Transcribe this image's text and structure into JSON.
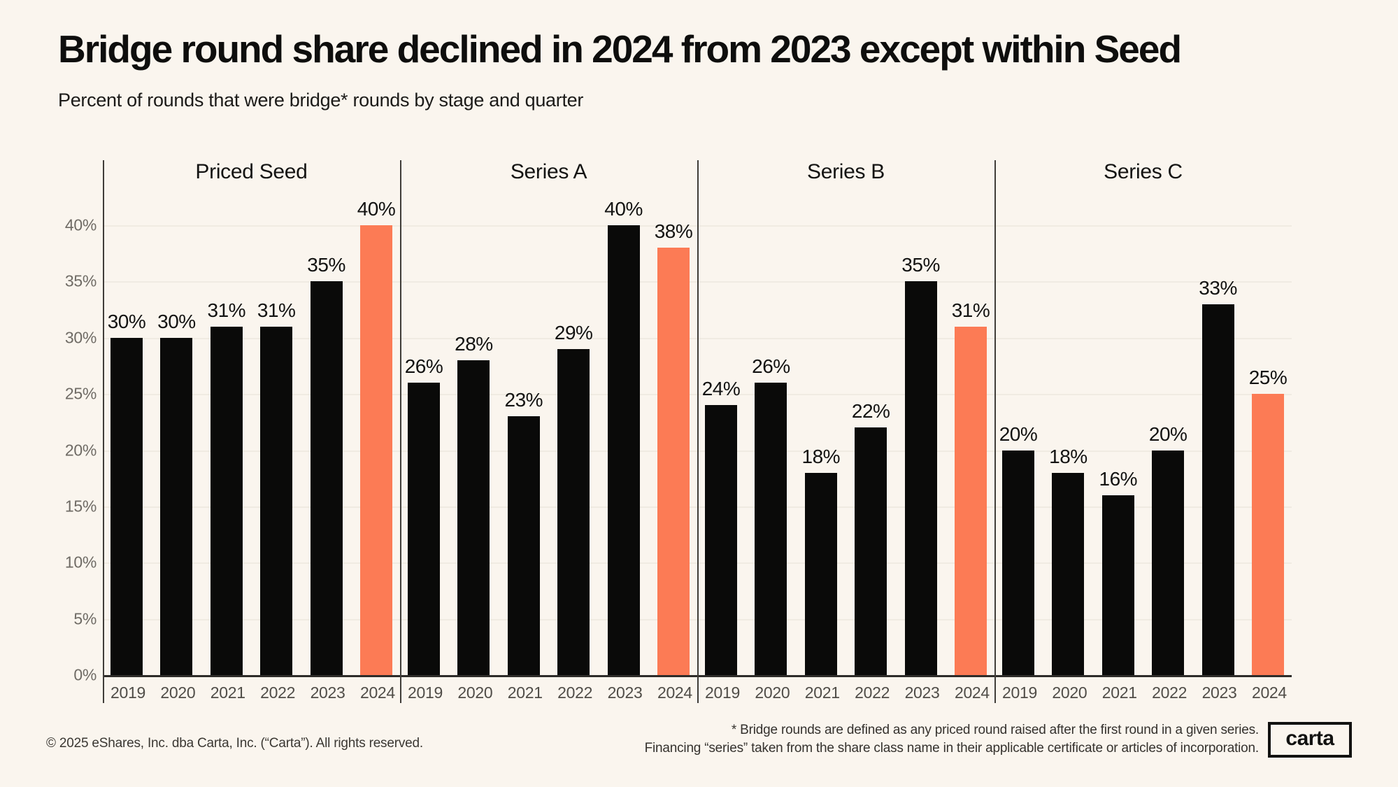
{
  "page": {
    "title": "Bridge round share declined in 2024 from 2023 except within Seed",
    "subtitle": "Percent of rounds that were bridge* rounds by stage and quarter"
  },
  "colors": {
    "background": "#FAF5EE",
    "bar_default": "#0A0A09",
    "bar_highlight": "#FC7B55",
    "gridline": "#F0EBE2",
    "axis_line": "#2E2C29",
    "group_separator": "#403D39",
    "y_tick_label": "#6F6B65",
    "year_label": "#504D48"
  },
  "chart_data": {
    "type": "bar",
    "title": "Bridge round share declined in 2024 from 2023 except within Seed",
    "subtitle": "Percent of rounds that were bridge* rounds by stage and quarter",
    "xlabel": "",
    "ylabel": "",
    "ylim": [
      0,
      46
    ],
    "grid": "horizontal lines every 5%",
    "legend_position": "none",
    "value_suffix": "%",
    "highlight_category": "2024",
    "categories": [
      "2019",
      "2020",
      "2021",
      "2022",
      "2023",
      "2024"
    ],
    "y_ticks": [
      {
        "value": 0,
        "label": "0%"
      },
      {
        "value": 5,
        "label": "5%"
      },
      {
        "value": 10,
        "label": "10%"
      },
      {
        "value": 15,
        "label": "15%"
      },
      {
        "value": 20,
        "label": "20%"
      },
      {
        "value": 25,
        "label": "25%"
      },
      {
        "value": 30,
        "label": "30%"
      },
      {
        "value": 35,
        "label": "35%"
      },
      {
        "value": 40,
        "label": "40%"
      }
    ],
    "groups": [
      {
        "name": "Priced Seed",
        "values": [
          30,
          30,
          31,
          31,
          35,
          40
        ],
        "labels": [
          "30%",
          "30%",
          "31%",
          "31%",
          "35%",
          "40%"
        ]
      },
      {
        "name": "Series A",
        "values": [
          26,
          28,
          23,
          29,
          40,
          38
        ],
        "labels": [
          "26%",
          "28%",
          "23%",
          "29%",
          "40%",
          "38%"
        ]
      },
      {
        "name": "Series B",
        "values": [
          24,
          26,
          18,
          22,
          35,
          31
        ],
        "labels": [
          "24%",
          "26%",
          "18%",
          "22%",
          "35%",
          "31%"
        ]
      },
      {
        "name": "Series C",
        "values": [
          20,
          18,
          16,
          20,
          33,
          25
        ],
        "labels": [
          "20%",
          "18%",
          "16%",
          "20%",
          "33%",
          "25%"
        ]
      }
    ]
  },
  "footer": {
    "copyright": "© 2025 eShares, Inc. dba Carta, Inc. (“Carta”). All rights reserved.",
    "footnote_line1": "* Bridge rounds are defined as any priced round raised after the first round in a given series.",
    "footnote_line2": "Financing “series” taken from the share class name in their applicable certificate or articles of incorporation.",
    "logo_text": "carta"
  }
}
